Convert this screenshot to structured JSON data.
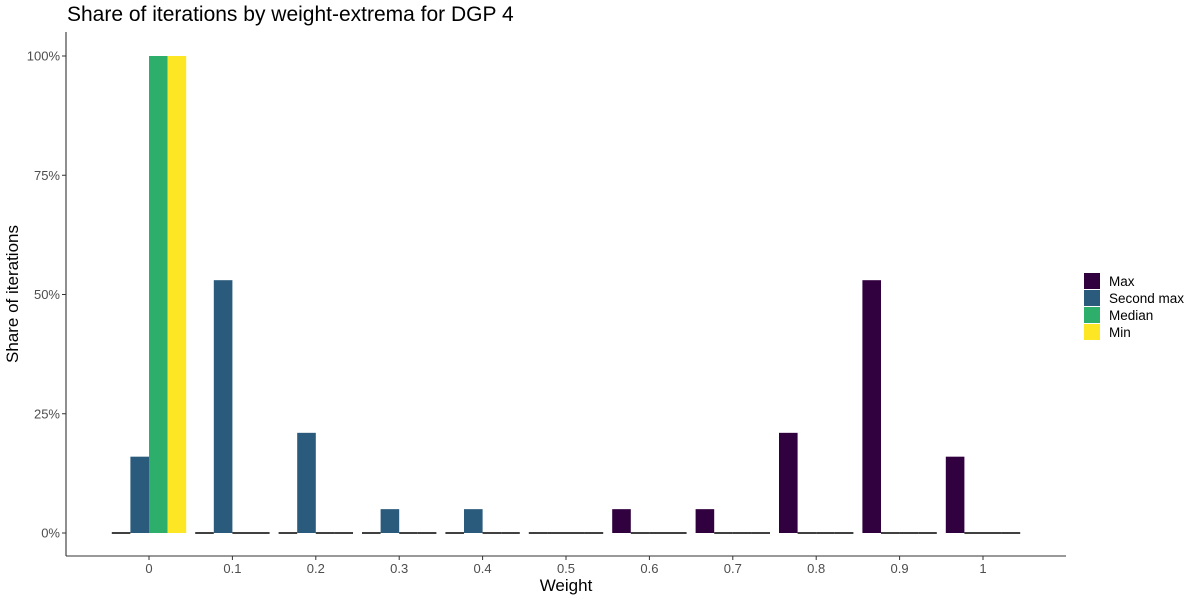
{
  "chart_data": {
    "type": "bar",
    "title": "Share of iterations by weight-extrema for DGP 4",
    "xlabel": "Weight",
    "ylabel": "Share of iterations",
    "categories": [
      "0",
      "0.1",
      "0.2",
      "0.3",
      "0.4",
      "0.5",
      "0.6",
      "0.7",
      "0.8",
      "0.9",
      "1"
    ],
    "ylim": [
      0,
      1
    ],
    "y_ticks": [
      0,
      0.25,
      0.5,
      0.75,
      1
    ],
    "y_tick_labels": [
      "0%",
      "25%",
      "50%",
      "75%",
      "100%"
    ],
    "grid": false,
    "legend_position": "right",
    "series": [
      {
        "name": "Max",
        "color": "#31013f",
        "values": [
          0,
          0,
          0,
          0,
          0,
          0,
          0.05,
          0.05,
          0.21,
          0.53,
          0.16
        ]
      },
      {
        "name": "Second max",
        "color": "#2a5a7c",
        "values": [
          0.16,
          0.53,
          0.21,
          0.05,
          0.05,
          0,
          0,
          0,
          0,
          0,
          0
        ]
      },
      {
        "name": "Median",
        "color": "#2dae6a",
        "values": [
          1,
          0,
          0,
          0,
          0,
          0,
          0,
          0,
          0,
          0,
          0
        ]
      },
      {
        "name": "Min",
        "color": "#fde624",
        "values": [
          1,
          0,
          0,
          0,
          0,
          0,
          0,
          0,
          0,
          0,
          0
        ]
      }
    ]
  }
}
